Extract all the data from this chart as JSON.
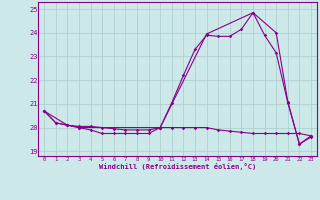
{
  "xlabel": "Windchill (Refroidissement éolien,°C)",
  "xlim": [
    -0.5,
    23.5
  ],
  "ylim": [
    18.8,
    25.3
  ],
  "yticks": [
    19,
    20,
    21,
    22,
    23,
    24,
    25
  ],
  "xticks": [
    0,
    1,
    2,
    3,
    4,
    5,
    6,
    7,
    8,
    9,
    10,
    11,
    12,
    13,
    14,
    15,
    16,
    17,
    18,
    19,
    20,
    21,
    22,
    23
  ],
  "bg_color": "#cce8e8",
  "line_color": "#880088",
  "grid_color": "#aacccc",
  "line1_x": [
    0,
    1,
    2,
    3,
    4,
    5,
    6,
    7,
    8,
    9,
    10,
    11,
    12,
    13,
    14,
    15,
    16,
    17,
    18,
    19,
    20,
    21,
    22,
    23
  ],
  "line1_y": [
    20.7,
    20.2,
    20.1,
    20.0,
    19.9,
    19.75,
    19.75,
    19.75,
    19.75,
    19.75,
    20.0,
    21.05,
    22.2,
    23.3,
    23.9,
    23.85,
    23.85,
    24.15,
    24.85,
    23.9,
    23.15,
    21.05,
    19.3,
    19.6
  ],
  "line2_x": [
    0,
    1,
    2,
    3,
    4,
    5,
    6,
    7,
    8,
    9,
    10,
    11,
    12,
    13,
    14,
    15,
    16,
    17,
    18,
    19,
    20,
    21,
    22,
    23
  ],
  "line2_y": [
    20.7,
    20.2,
    20.1,
    20.05,
    20.05,
    20.0,
    19.95,
    19.9,
    19.9,
    19.9,
    20.0,
    20.0,
    20.0,
    20.0,
    20.0,
    19.9,
    19.85,
    19.8,
    19.75,
    19.75,
    19.75,
    19.75,
    19.75,
    19.65
  ],
  "line3_x": [
    0,
    2,
    3,
    10,
    14,
    18,
    20,
    21,
    22,
    23
  ],
  "line3_y": [
    20.7,
    20.1,
    20.0,
    20.0,
    23.95,
    24.85,
    24.0,
    21.1,
    19.3,
    19.65
  ]
}
